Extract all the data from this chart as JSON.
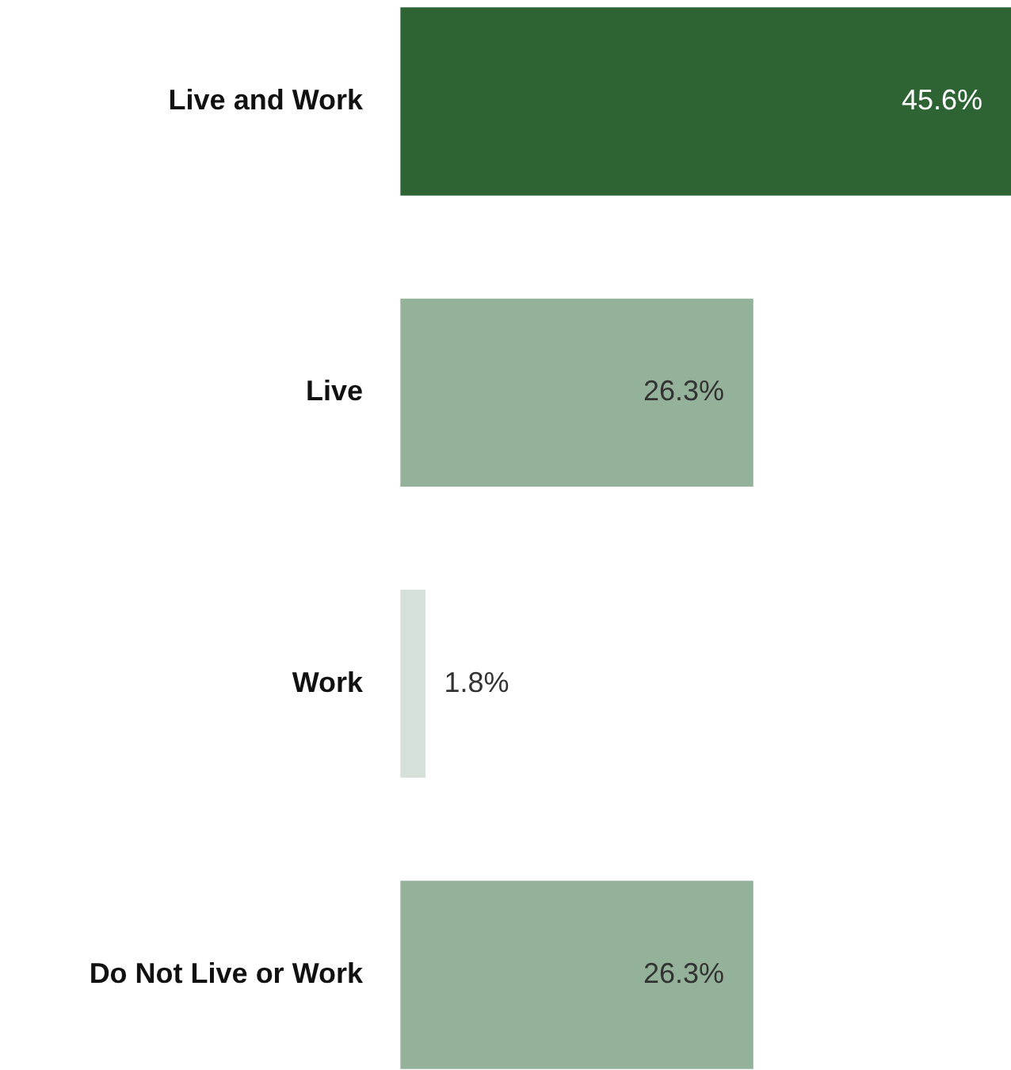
{
  "chart_data": {
    "type": "bar",
    "orientation": "horizontal",
    "categories": [
      "Live and Work",
      "Live",
      "Work",
      "Do Not Live or Work"
    ],
    "values": [
      45.6,
      26.3,
      1.8,
      26.3
    ],
    "colors": [
      "#2e6434",
      "#94b29a",
      "#d5e1d8",
      "#94b29a"
    ],
    "value_labels": [
      "45.6%",
      "26.3%",
      "1.8%",
      "26.3%"
    ],
    "grid": false,
    "legend": false
  }
}
